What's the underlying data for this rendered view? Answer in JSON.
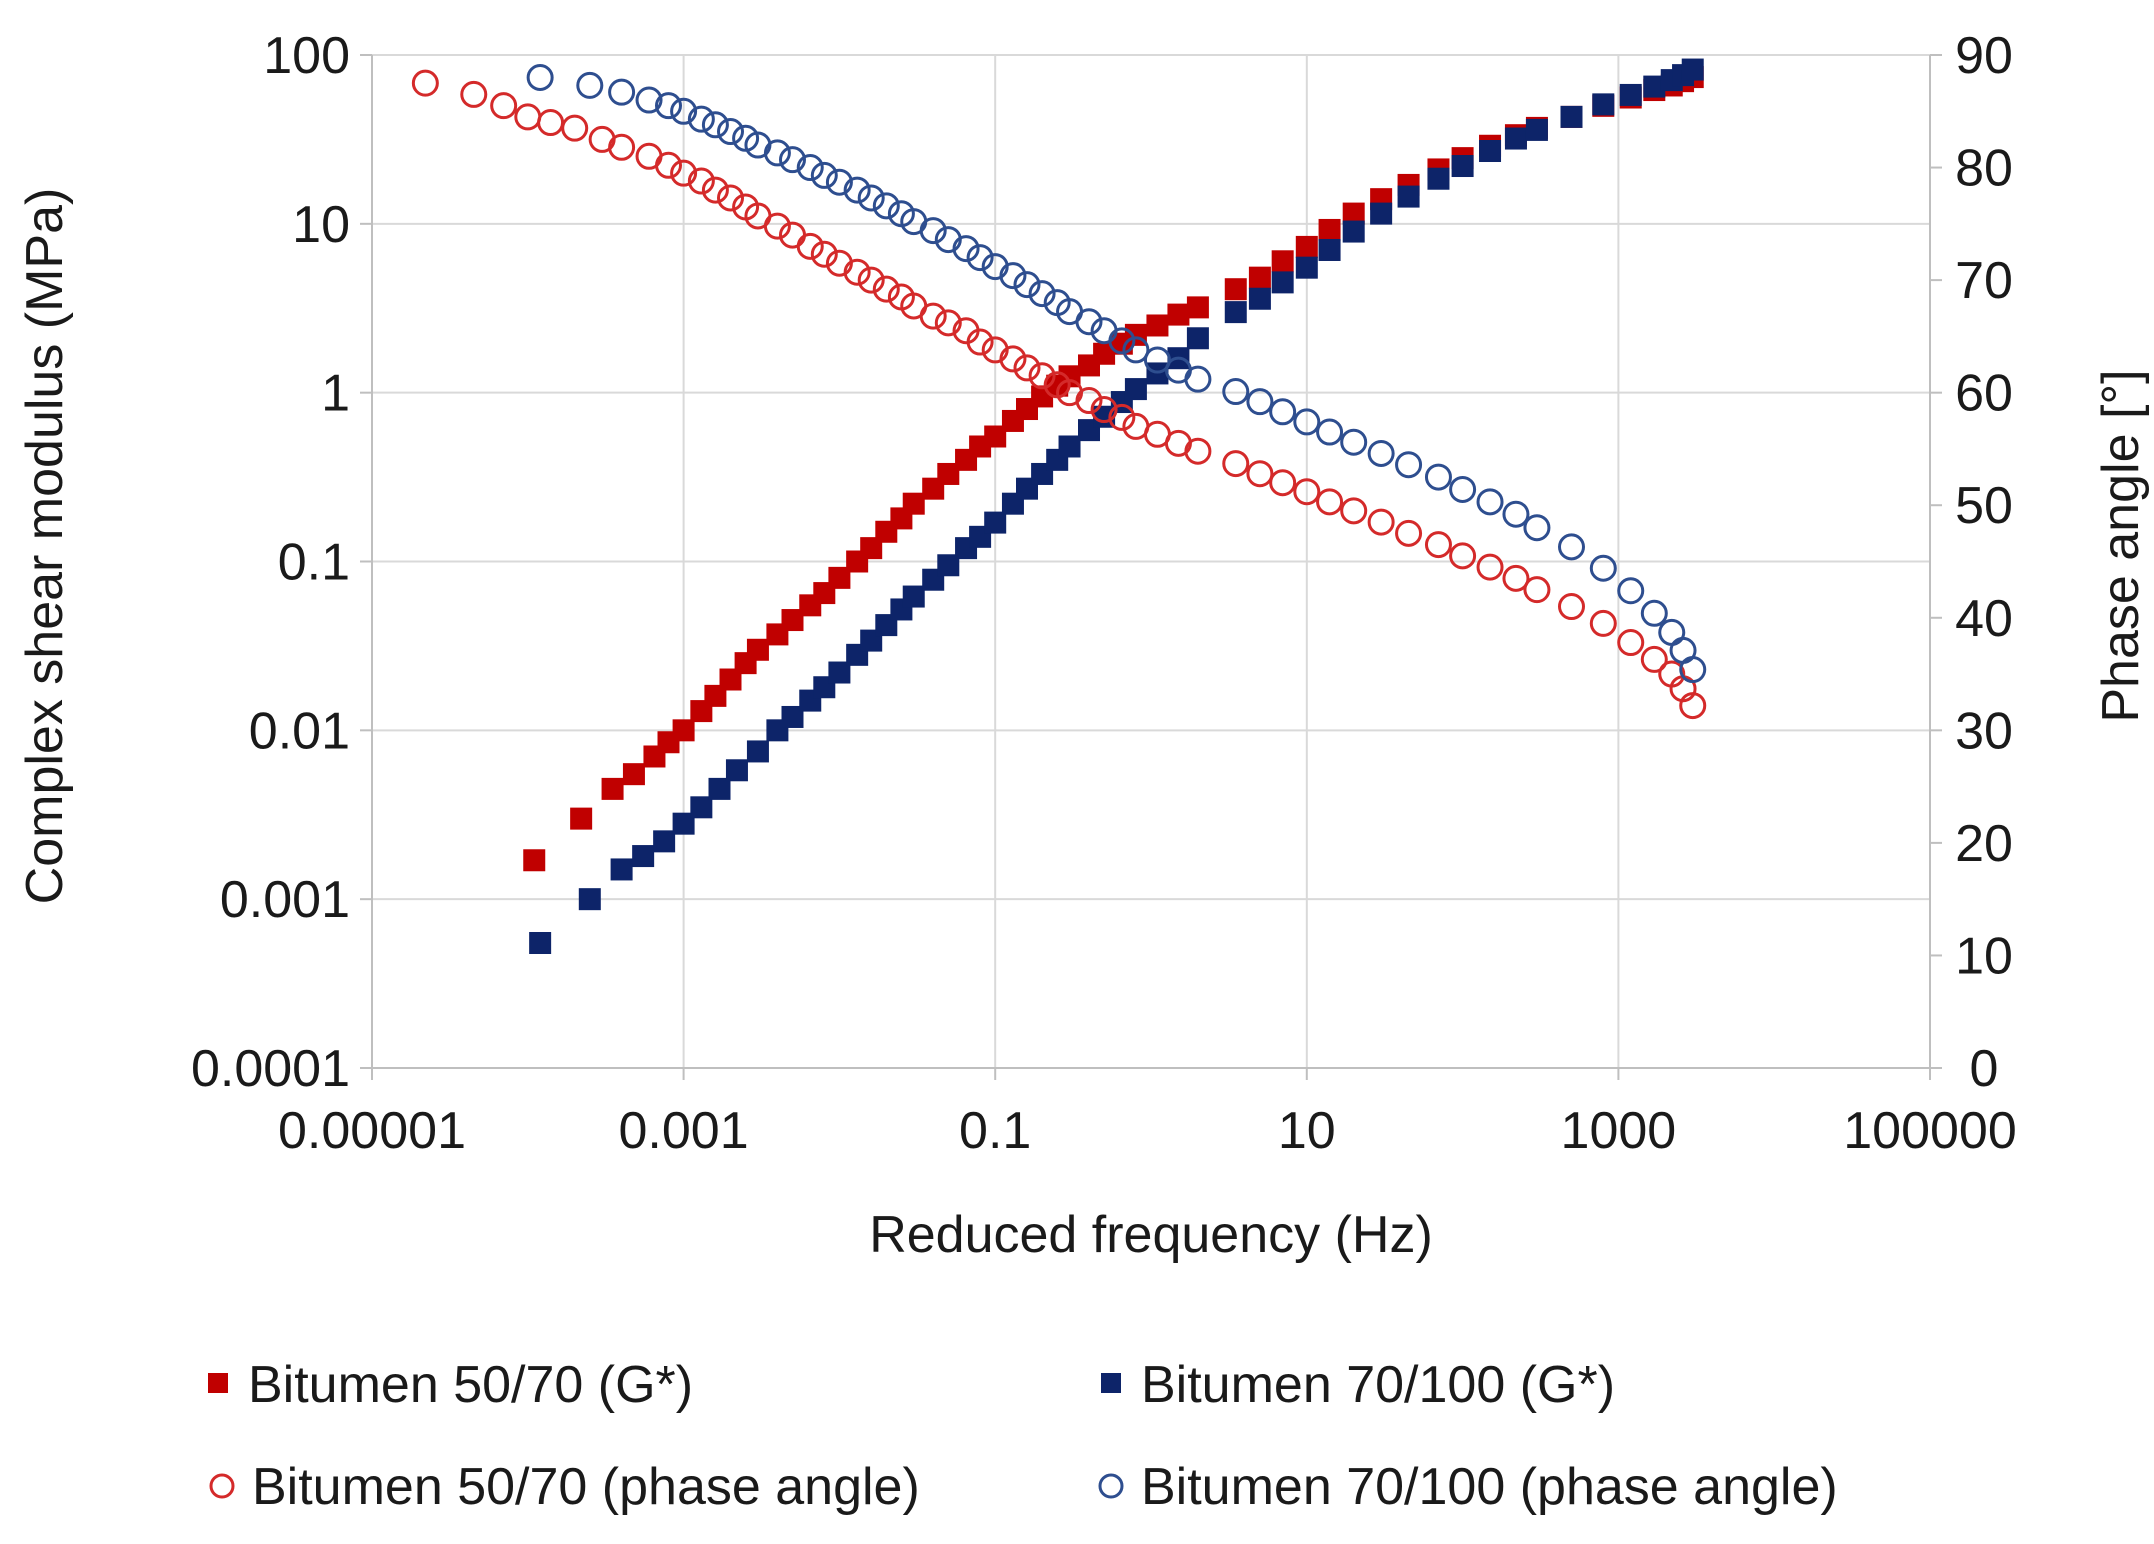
{
  "chart_data": {
    "type": "scatter",
    "x_scale": "log",
    "xlabel": "Reduced frequency (Hz)",
    "ylabel": "Complex  shear modulus (MPa)",
    "y2label": "Phase angle [°]",
    "xlim": [
      1e-05,
      100000
    ],
    "ylim": [
      0.0001,
      100
    ],
    "y2lim": [
      0,
      90
    ],
    "grid": true,
    "legend_position": "bottom",
    "xticks": [
      {
        "value": 1e-05,
        "label": "0.00001"
      },
      {
        "value": 0.001,
        "label": "0.001"
      },
      {
        "value": 0.1,
        "label": "0.1"
      },
      {
        "value": 10,
        "label": "10"
      },
      {
        "value": 1000,
        "label": "1000"
      },
      {
        "value": 100000,
        "label": "100000"
      }
    ],
    "yticks": [
      {
        "value": 100,
        "label": "100"
      },
      {
        "value": 10,
        "label": "10"
      },
      {
        "value": 1,
        "label": "1"
      },
      {
        "value": 0.1,
        "label": "0.1"
      },
      {
        "value": 0.01,
        "label": "0.01"
      },
      {
        "value": 0.001,
        "label": "0.001"
      },
      {
        "value": 0.0001,
        "label": "0.0001"
      }
    ],
    "y2ticks": [
      {
        "value": 90,
        "label": "90"
      },
      {
        "value": 80,
        "label": "80"
      },
      {
        "value": 70,
        "label": "70"
      },
      {
        "value": 60,
        "label": "60"
      },
      {
        "value": 50,
        "label": "50"
      },
      {
        "value": 40,
        "label": "40"
      },
      {
        "value": 30,
        "label": "30"
      },
      {
        "value": 20,
        "label": "20"
      },
      {
        "value": 10,
        "label": "10"
      },
      {
        "value": 0,
        "label": "0"
      }
    ],
    "series": [
      {
        "name": "Bitumen 50/70 (G*)",
        "axis": "left",
        "marker": "square-filled",
        "color": "#c00000",
        "points": [
          [
            0.00011,
            0.0017
          ],
          [
            0.00022,
            0.003
          ],
          [
            0.00035,
            0.0045
          ],
          [
            0.00048,
            0.0055
          ],
          [
            0.00065,
            0.007
          ],
          [
            0.0008,
            0.0085
          ],
          [
            0.001,
            0.01
          ],
          [
            0.0013,
            0.013
          ],
          [
            0.0016,
            0.016
          ],
          [
            0.002,
            0.02
          ],
          [
            0.0025,
            0.025
          ],
          [
            0.003,
            0.03
          ],
          [
            0.004,
            0.037
          ],
          [
            0.005,
            0.045
          ],
          [
            0.0065,
            0.055
          ],
          [
            0.008,
            0.065
          ],
          [
            0.01,
            0.08
          ],
          [
            0.013,
            0.1
          ],
          [
            0.016,
            0.12
          ],
          [
            0.02,
            0.15
          ],
          [
            0.025,
            0.18
          ],
          [
            0.03,
            0.22
          ],
          [
            0.04,
            0.27
          ],
          [
            0.05,
            0.33
          ],
          [
            0.065,
            0.4
          ],
          [
            0.08,
            0.48
          ],
          [
            0.1,
            0.55
          ],
          [
            0.13,
            0.68
          ],
          [
            0.16,
            0.8
          ],
          [
            0.2,
            0.95
          ],
          [
            0.25,
            1.1
          ],
          [
            0.3,
            1.25
          ],
          [
            0.4,
            1.45
          ],
          [
            0.5,
            1.7
          ],
          [
            0.65,
            1.95
          ],
          [
            0.8,
            2.2
          ],
          [
            1.1,
            2.5
          ],
          [
            1.5,
            2.9
          ],
          [
            2,
            3.2
          ],
          [
            3.5,
            4.1
          ],
          [
            5,
            4.8
          ],
          [
            7,
            6
          ],
          [
            10,
            7.3
          ],
          [
            14,
            9.2
          ],
          [
            20,
            11.5
          ],
          [
            30,
            14
          ],
          [
            45,
            17
          ],
          [
            70,
            21
          ],
          [
            100,
            24.5
          ],
          [
            150,
            29
          ],
          [
            220,
            33.5
          ],
          [
            300,
            37
          ],
          [
            500,
            43
          ],
          [
            800,
            50
          ],
          [
            1200,
            56
          ],
          [
            1700,
            62
          ],
          [
            2200,
            66
          ],
          [
            2600,
            70
          ],
          [
            3000,
            74
          ]
        ]
      },
      {
        "name": "Bitumen 70/100 (G*)",
        "axis": "left",
        "marker": "square-filled",
        "color": "#0d2469",
        "points": [
          [
            0.00012,
            0.00055
          ],
          [
            0.00025,
            0.001
          ],
          [
            0.0004,
            0.0015
          ],
          [
            0.00055,
            0.0018
          ],
          [
            0.00075,
            0.0022
          ],
          [
            0.001,
            0.0028
          ],
          [
            0.0013,
            0.0035
          ],
          [
            0.0017,
            0.0045
          ],
          [
            0.0022,
            0.0058
          ],
          [
            0.003,
            0.0075
          ],
          [
            0.004,
            0.01
          ],
          [
            0.005,
            0.012
          ],
          [
            0.0065,
            0.015
          ],
          [
            0.008,
            0.018
          ],
          [
            0.01,
            0.022
          ],
          [
            0.013,
            0.028
          ],
          [
            0.016,
            0.034
          ],
          [
            0.02,
            0.042
          ],
          [
            0.025,
            0.052
          ],
          [
            0.03,
            0.062
          ],
          [
            0.04,
            0.078
          ],
          [
            0.05,
            0.095
          ],
          [
            0.065,
            0.12
          ],
          [
            0.08,
            0.14
          ],
          [
            0.1,
            0.17
          ],
          [
            0.13,
            0.22
          ],
          [
            0.16,
            0.27
          ],
          [
            0.2,
            0.33
          ],
          [
            0.25,
            0.4
          ],
          [
            0.3,
            0.48
          ],
          [
            0.4,
            0.6
          ],
          [
            0.5,
            0.72
          ],
          [
            0.65,
            0.88
          ],
          [
            0.8,
            1.05
          ],
          [
            1.1,
            1.3
          ],
          [
            1.5,
            1.6
          ],
          [
            2,
            2.1
          ],
          [
            3.5,
            3
          ],
          [
            5,
            3.6
          ],
          [
            7,
            4.5
          ],
          [
            10,
            5.5
          ],
          [
            14,
            7
          ],
          [
            20,
            9
          ],
          [
            30,
            11.5
          ],
          [
            45,
            14.5
          ],
          [
            70,
            18.5
          ],
          [
            100,
            22
          ],
          [
            150,
            27
          ],
          [
            220,
            32
          ],
          [
            300,
            36
          ],
          [
            500,
            43
          ],
          [
            800,
            51
          ],
          [
            1200,
            58
          ],
          [
            1700,
            65
          ],
          [
            2200,
            71
          ],
          [
            2600,
            76
          ],
          [
            3000,
            82
          ]
        ]
      },
      {
        "name": "Bitumen 50/70 (phase angle)",
        "axis": "right",
        "marker": "circle-open",
        "color": "#d42a2a",
        "points": [
          [
            2.2e-05,
            87.5
          ],
          [
            4.5e-05,
            86.5
          ],
          [
            7e-05,
            85.5
          ],
          [
            0.0001,
            84.5
          ],
          [
            0.00014,
            84
          ],
          [
            0.0002,
            83.5
          ],
          [
            0.0003,
            82.5
          ],
          [
            0.0004,
            81.8
          ],
          [
            0.0006,
            81
          ],
          [
            0.0008,
            80.2
          ],
          [
            0.001,
            79.5
          ],
          [
            0.0013,
            78.8
          ],
          [
            0.0016,
            78
          ],
          [
            0.002,
            77.3
          ],
          [
            0.0025,
            76.5
          ],
          [
            0.003,
            75.7
          ],
          [
            0.004,
            74.8
          ],
          [
            0.005,
            74
          ],
          [
            0.0065,
            73
          ],
          [
            0.008,
            72.3
          ],
          [
            0.01,
            71.5
          ],
          [
            0.013,
            70.7
          ],
          [
            0.016,
            70
          ],
          [
            0.02,
            69.2
          ],
          [
            0.025,
            68.5
          ],
          [
            0.03,
            67.7
          ],
          [
            0.04,
            66.8
          ],
          [
            0.05,
            66.2
          ],
          [
            0.065,
            65.5
          ],
          [
            0.08,
            64.5
          ],
          [
            0.1,
            63.8
          ],
          [
            0.13,
            63
          ],
          [
            0.16,
            62.2
          ],
          [
            0.2,
            61.5
          ],
          [
            0.25,
            60.7
          ],
          [
            0.3,
            60
          ],
          [
            0.4,
            59.3
          ],
          [
            0.5,
            58.5
          ],
          [
            0.65,
            57.8
          ],
          [
            0.8,
            57
          ],
          [
            1.1,
            56.3
          ],
          [
            1.5,
            55.5
          ],
          [
            2,
            54.8
          ],
          [
            3.5,
            53.7
          ],
          [
            5,
            52.8
          ],
          [
            7,
            52
          ],
          [
            10,
            51.2
          ],
          [
            14,
            50.3
          ],
          [
            20,
            49.5
          ],
          [
            30,
            48.5
          ],
          [
            45,
            47.5
          ],
          [
            70,
            46.5
          ],
          [
            100,
            45.5
          ],
          [
            150,
            44.5
          ],
          [
            220,
            43.5
          ],
          [
            300,
            42.5
          ],
          [
            500,
            41
          ],
          [
            800,
            39.5
          ],
          [
            1200,
            37.8
          ],
          [
            1700,
            36.3
          ],
          [
            2200,
            35
          ],
          [
            2600,
            33.7
          ],
          [
            3000,
            32.2
          ]
        ]
      },
      {
        "name": "Bitumen 70/100 (phase angle)",
        "axis": "right",
        "marker": "circle-open",
        "color": "#2e4e8f",
        "points": [
          [
            0.00012,
            88
          ],
          [
            0.00025,
            87.3
          ],
          [
            0.0004,
            86.7
          ],
          [
            0.0006,
            86
          ],
          [
            0.0008,
            85.5
          ],
          [
            0.001,
            85
          ],
          [
            0.0013,
            84.3
          ],
          [
            0.0016,
            83.8
          ],
          [
            0.002,
            83.2
          ],
          [
            0.0025,
            82.6
          ],
          [
            0.003,
            82
          ],
          [
            0.004,
            81.3
          ],
          [
            0.005,
            80.7
          ],
          [
            0.0065,
            80
          ],
          [
            0.008,
            79.3
          ],
          [
            0.01,
            78.7
          ],
          [
            0.013,
            78
          ],
          [
            0.016,
            77.3
          ],
          [
            0.02,
            76.6
          ],
          [
            0.025,
            75.9
          ],
          [
            0.03,
            75.2
          ],
          [
            0.04,
            74.4
          ],
          [
            0.05,
            73.6
          ],
          [
            0.065,
            72.8
          ],
          [
            0.08,
            72
          ],
          [
            0.1,
            71.2
          ],
          [
            0.13,
            70.4
          ],
          [
            0.16,
            69.6
          ],
          [
            0.2,
            68.8
          ],
          [
            0.25,
            68
          ],
          [
            0.3,
            67.2
          ],
          [
            0.4,
            66.3
          ],
          [
            0.5,
            65.5
          ],
          [
            0.65,
            64.6
          ],
          [
            0.8,
            63.8
          ],
          [
            1.1,
            62.9
          ],
          [
            1.5,
            62
          ],
          [
            2,
            61.2
          ],
          [
            3.5,
            60.1
          ],
          [
            5,
            59.2
          ],
          [
            7,
            58.3
          ],
          [
            10,
            57.4
          ],
          [
            14,
            56.5
          ],
          [
            20,
            55.6
          ],
          [
            30,
            54.6
          ],
          [
            45,
            53.6
          ],
          [
            70,
            52.5
          ],
          [
            100,
            51.4
          ],
          [
            150,
            50.3
          ],
          [
            220,
            49.2
          ],
          [
            300,
            48
          ],
          [
            500,
            46.3
          ],
          [
            800,
            44.4
          ],
          [
            1200,
            42.4
          ],
          [
            1700,
            40.4
          ],
          [
            2200,
            38.7
          ],
          [
            2600,
            37.1
          ],
          [
            3000,
            35.4
          ]
        ]
      }
    ],
    "legend": [
      {
        "label": "Bitumen 50/70 (G*)",
        "marker": "square-filled",
        "color": "#c00000"
      },
      {
        "label": "Bitumen 70/100 (G*)",
        "marker": "square-filled",
        "color": "#0d2469"
      },
      {
        "label": "Bitumen 50/70 (phase angle)",
        "marker": "circle-open",
        "color": "#d42a2a"
      },
      {
        "label": "Bitumen 70/100 (phase angle)",
        "marker": "circle-open",
        "color": "#2e4e8f"
      }
    ]
  }
}
